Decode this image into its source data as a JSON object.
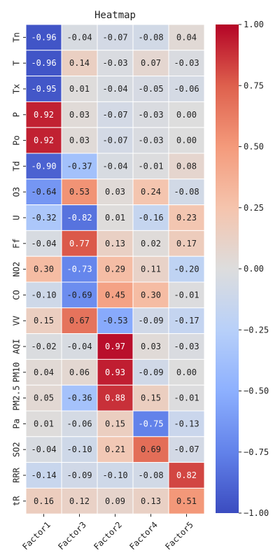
{
  "chart_data": {
    "type": "heatmap",
    "title": "Heatmap",
    "xlabel": "",
    "ylabel": "",
    "columns": [
      "Factor1",
      "Factor3",
      "Factor2",
      "Factor4",
      "Factor5"
    ],
    "rows": [
      "Tn",
      "T",
      "Tx",
      "P",
      "Po",
      "Td",
      "O3",
      "U",
      "Ff",
      "NO2",
      "CO",
      "VV",
      "AQI",
      "PM10",
      "PM2.5",
      "Pa",
      "SO2",
      "RRR",
      "tR"
    ],
    "values": [
      [
        -0.96,
        -0.04,
        -0.07,
        -0.08,
        0.04
      ],
      [
        -0.96,
        0.14,
        -0.03,
        0.07,
        -0.03
      ],
      [
        -0.95,
        0.01,
        -0.04,
        -0.05,
        -0.06
      ],
      [
        0.92,
        0.03,
        -0.07,
        -0.03,
        -0.0
      ],
      [
        0.92,
        0.03,
        -0.07,
        -0.03,
        -0.0
      ],
      [
        -0.9,
        -0.37,
        -0.04,
        -0.01,
        0.08
      ],
      [
        -0.64,
        0.53,
        0.03,
        0.24,
        -0.08
      ],
      [
        -0.32,
        -0.82,
        0.01,
        -0.16,
        0.23
      ],
      [
        -0.04,
        0.77,
        0.13,
        0.02,
        0.17
      ],
      [
        0.3,
        -0.73,
        0.29,
        0.11,
        -0.2
      ],
      [
        -0.1,
        -0.69,
        0.45,
        0.3,
        -0.01
      ],
      [
        0.15,
        0.67,
        -0.53,
        -0.09,
        -0.17
      ],
      [
        -0.02,
        -0.04,
        0.97,
        0.03,
        -0.03
      ],
      [
        0.04,
        0.06,
        0.93,
        -0.09,
        0.0
      ],
      [
        0.05,
        -0.36,
        0.88,
        0.15,
        -0.01
      ],
      [
        0.01,
        -0.06,
        0.15,
        -0.75,
        -0.13
      ],
      [
        -0.04,
        -0.1,
        0.21,
        0.69,
        -0.07
      ],
      [
        -0.14,
        -0.09,
        -0.1,
        -0.08,
        0.82
      ],
      [
        0.16,
        0.12,
        0.09,
        0.13,
        0.51
      ]
    ],
    "colormap": "coolwarm",
    "vmin": -1.0,
    "vmax": 1.0,
    "colorbar_ticks": [
      1.0,
      0.75,
      0.5,
      0.25,
      0.0,
      -0.25,
      -0.5,
      -0.75,
      -1.0
    ],
    "legend": "colorbar-right",
    "grid": false
  }
}
